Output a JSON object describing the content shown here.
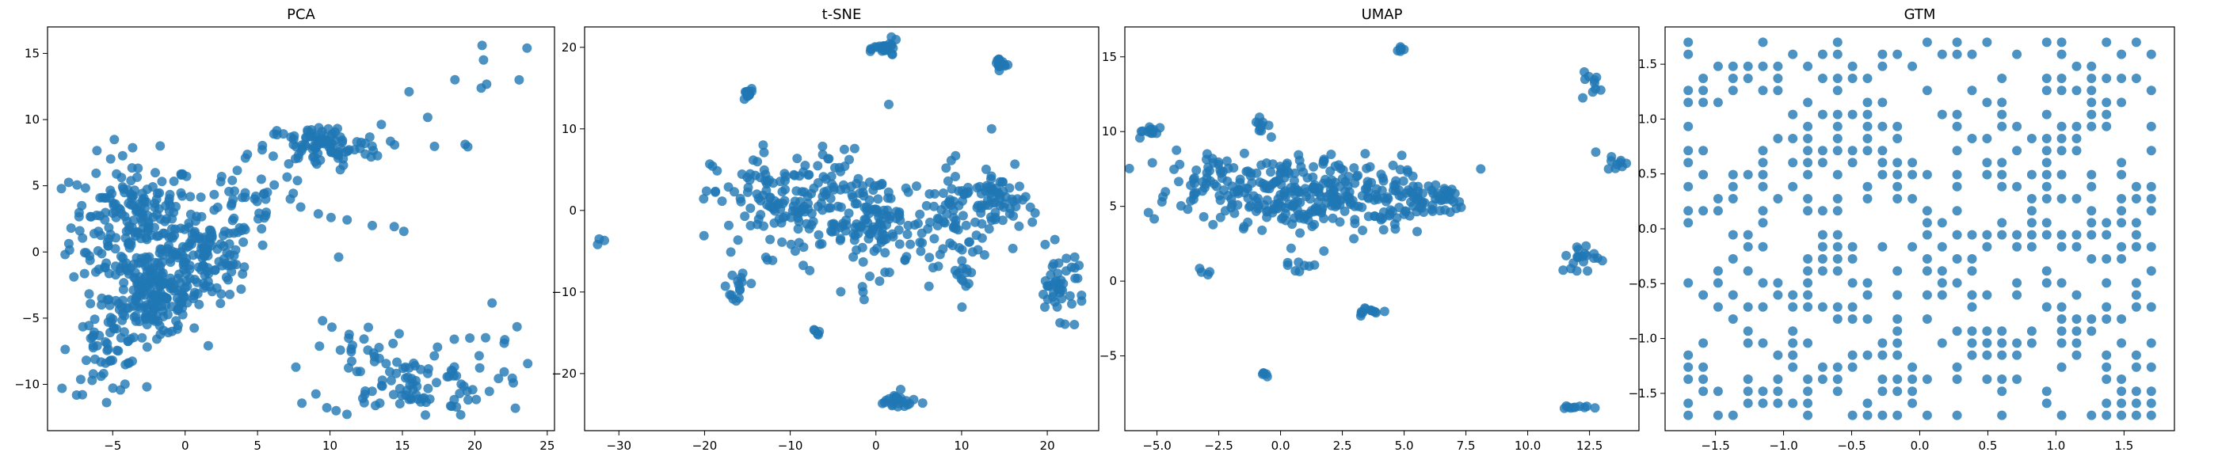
{
  "figure": {
    "background": "#ffffff",
    "marker_color": "#1f77b4",
    "marker_alpha": 0.8
  },
  "chart_data": [
    {
      "type": "scatter",
      "title": "PCA",
      "xlim": [
        -9.5,
        25.5
      ],
      "ylim": [
        -13.5,
        17.0
      ],
      "xticks": [
        -5,
        0,
        5,
        10,
        15,
        20,
        25
      ],
      "yticks": [
        -10,
        -5,
        0,
        5,
        10,
        15
      ],
      "clusters": [
        {
          "cx": -3.5,
          "cy": 2.0,
          "sx": 2.2,
          "sy": 2.6,
          "n": 220
        },
        {
          "cx": -2.0,
          "cy": -3.5,
          "sx": 1.6,
          "sy": 1.4,
          "n": 160
        },
        {
          "cx": 1.5,
          "cy": -0.5,
          "sx": 1.6,
          "sy": 1.5,
          "n": 110
        },
        {
          "cx": -5.5,
          "cy": -7.5,
          "sx": 1.2,
          "sy": 1.6,
          "n": 55
        },
        {
          "cx": 9.5,
          "cy": 8.0,
          "sx": 2.0,
          "sy": 0.8,
          "n": 95
        },
        {
          "cx": 4.5,
          "cy": 4.0,
          "sx": 2.2,
          "sy": 1.8,
          "n": 45
        },
        {
          "cx": 15.5,
          "cy": -10.0,
          "sx": 3.0,
          "sy": 1.2,
          "n": 85
        },
        {
          "cx": 12.0,
          "cy": -7.5,
          "sx": 1.5,
          "sy": 1.2,
          "n": 22
        },
        {
          "cx": 17.5,
          "cy": 11.0,
          "sx": 2.5,
          "sy": 2.0,
          "n": 10
        },
        {
          "cx": 21.5,
          "cy": -6.5,
          "sx": 1.5,
          "sy": 1.5,
          "n": 8
        },
        {
          "cx": 12.5,
          "cy": 1.5,
          "sx": 1.5,
          "sy": 2.0,
          "n": 6
        }
      ],
      "points": [
        [
          20.5,
          15.6
        ],
        [
          20.6,
          14.5
        ],
        [
          23.6,
          15.4
        ],
        [
          -8.5,
          -10.3
        ],
        [
          22.8,
          -11.8
        ]
      ]
    },
    {
      "type": "scatter",
      "title": "t-SNE",
      "xlim": [
        -34,
        26
      ],
      "ylim": [
        -27.0,
        22.5
      ],
      "xticks": [
        -30,
        -20,
        -10,
        0,
        10,
        20
      ],
      "yticks": [
        -20,
        -10,
        0,
        10,
        20
      ],
      "clusters": [
        {
          "cx": -10.0,
          "cy": 1.0,
          "sx": 4.5,
          "sy": 3.2,
          "n": 160
        },
        {
          "cx": 0.0,
          "cy": -1.5,
          "sx": 3.0,
          "sy": 3.0,
          "n": 120
        },
        {
          "cx": 10.0,
          "cy": -0.5,
          "sx": 3.0,
          "sy": 3.0,
          "n": 90
        },
        {
          "cx": 14.5,
          "cy": 1.0,
          "sx": 1.5,
          "sy": 1.8,
          "n": 40
        },
        {
          "cx": 21.5,
          "cy": -9.0,
          "sx": 1.5,
          "sy": 2.0,
          "n": 45
        },
        {
          "cx": 1.2,
          "cy": 19.8,
          "sx": 0.7,
          "sy": 0.5,
          "n": 25
        },
        {
          "cx": -15.0,
          "cy": 14.2,
          "sx": 0.3,
          "sy": 0.4,
          "n": 15
        },
        {
          "cx": 14.5,
          "cy": 18.0,
          "sx": 0.3,
          "sy": 0.4,
          "n": 15
        },
        {
          "cx": 2.5,
          "cy": -23.5,
          "sx": 1.3,
          "sy": 0.6,
          "n": 25
        },
        {
          "cx": -16.0,
          "cy": -9.0,
          "sx": 0.7,
          "sy": 1.5,
          "n": 15
        },
        {
          "cx": -7.0,
          "cy": -15.0,
          "sx": 0.2,
          "sy": 0.2,
          "n": 5
        },
        {
          "cx": -32.0,
          "cy": -4.0,
          "sx": 0.2,
          "sy": 0.2,
          "n": 3
        },
        {
          "cx": 10.0,
          "cy": -8.5,
          "sx": 0.6,
          "sy": 1.5,
          "n": 12
        }
      ],
      "points": [
        [
          1.5,
          13.0
        ],
        [
          -1.5,
          -10.0
        ],
        [
          13.5,
          10.0
        ]
      ]
    },
    {
      "type": "scatter",
      "title": "UMAP",
      "xlim": [
        -6.3,
        14.5
      ],
      "ylim": [
        -10.0,
        17.0
      ],
      "xticks": [
        -5.0,
        -2.5,
        0.0,
        2.5,
        5.0,
        7.5,
        10.0,
        12.5
      ],
      "yticks": [
        -5,
        0,
        5,
        10,
        15
      ],
      "clusters": [
        {
          "cx": 0.5,
          "cy": 6.0,
          "sx": 2.2,
          "sy": 1.2,
          "n": 230
        },
        {
          "cx": 3.5,
          "cy": 5.0,
          "sx": 1.5,
          "sy": 0.9,
          "n": 70
        },
        {
          "cx": 6.2,
          "cy": 5.8,
          "sx": 0.8,
          "sy": 0.5,
          "n": 40
        },
        {
          "cx": -2.5,
          "cy": 7.0,
          "sx": 0.9,
          "sy": 0.9,
          "n": 40
        },
        {
          "cx": -5.2,
          "cy": 10.0,
          "sx": 0.3,
          "sy": 0.2,
          "n": 12
        },
        {
          "cx": -0.8,
          "cy": 10.5,
          "sx": 0.15,
          "sy": 0.4,
          "n": 10
        },
        {
          "cx": 4.9,
          "cy": 15.4,
          "sx": 0.1,
          "sy": 0.15,
          "n": 6
        },
        {
          "cx": 12.6,
          "cy": 13.2,
          "sx": 0.2,
          "sy": 0.6,
          "n": 10
        },
        {
          "cx": 13.6,
          "cy": 8.0,
          "sx": 0.25,
          "sy": 0.3,
          "n": 10
        },
        {
          "cx": 12.3,
          "cy": 1.5,
          "sx": 0.5,
          "sy": 0.5,
          "n": 20
        },
        {
          "cx": 3.6,
          "cy": -2.0,
          "sx": 0.35,
          "sy": 0.15,
          "n": 12
        },
        {
          "cx": -0.6,
          "cy": -6.2,
          "sx": 0.1,
          "sy": 0.1,
          "n": 5
        },
        {
          "cx": 11.9,
          "cy": -8.4,
          "sx": 0.3,
          "sy": 0.1,
          "n": 10
        },
        {
          "cx": 0.8,
          "cy": 1.2,
          "sx": 0.4,
          "sy": 0.8,
          "n": 10
        },
        {
          "cx": -3.2,
          "cy": 0.6,
          "sx": 0.15,
          "sy": 0.1,
          "n": 4
        }
      ],
      "points": [
        [
          8.1,
          7.5
        ],
        [
          -4.8,
          5.3
        ]
      ]
    },
    {
      "type": "scatter",
      "title": "GTM",
      "xlim": [
        -1.87,
        1.87
      ],
      "ylim": [
        -1.84,
        1.84
      ],
      "xticks": [
        -1.5,
        -1.0,
        -0.5,
        0.0,
        0.5,
        1.0,
        1.5
      ],
      "yticks": [
        -1.5,
        -1.0,
        -0.5,
        0.0,
        0.5,
        1.0,
        1.5
      ],
      "grid_min": -1.7,
      "grid_max": 1.7,
      "grid_size": 32,
      "occupancy": 0.42
    }
  ]
}
